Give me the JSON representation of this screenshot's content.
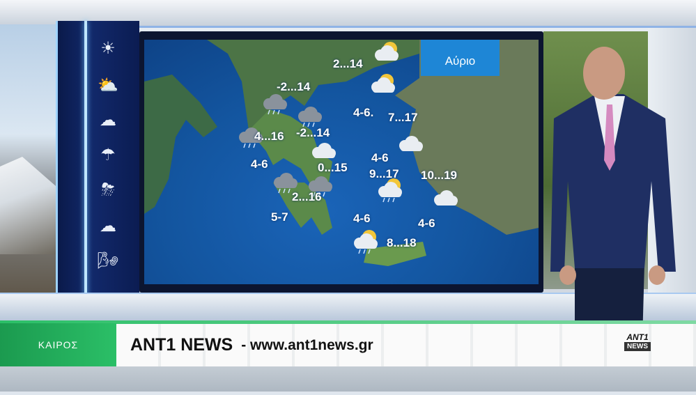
{
  "map": {
    "badge": "Αύριο",
    "labels": [
      "2...14",
      "-2...14",
      "4...16",
      "-2...14",
      "4-6",
      "0...15",
      "4-6.",
      "7...17",
      "4-6",
      "9...17",
      "10...19",
      "2...16",
      "5-7",
      "4-6",
      "4-6",
      "8...18"
    ],
    "weather_icons": [
      "partly-cloudy-sun",
      "partly-cloudy-sun",
      "cloud-rain",
      "cloud-rain",
      "cloud-rain",
      "cloud",
      "cloud",
      "cloud-rain",
      "cloud-rain",
      "sun-rain",
      "cloud",
      "sun-rain"
    ]
  },
  "sidebar": {
    "icons": [
      "sun-icon",
      "partly-cloudy-icon",
      "cloud-icon",
      "rain-icon",
      "thunderstorm-icon",
      "clouds-icon",
      "storm-wind-icon"
    ]
  },
  "ticker": {
    "section": "ΚΑΙΡΟΣ",
    "title": "ANT1 NEWS",
    "url": "- www.ant1news.gr",
    "logo_top": "ANT1",
    "logo_bottom": "NEWS"
  },
  "colors": {
    "accent_green": "#2bbf67",
    "badge_blue": "#1e86d6",
    "sea": "#13559f"
  }
}
